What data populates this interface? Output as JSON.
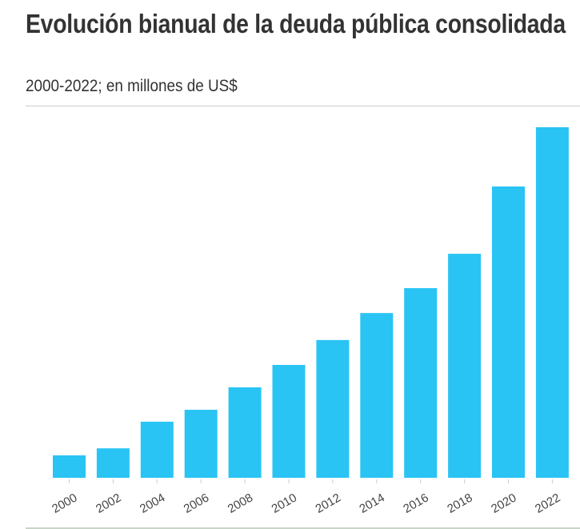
{
  "title": "Evolución bianual de la deuda pública consolidada",
  "subtitle": "2000-2022; en millones de US$",
  "chart_data": {
    "type": "bar",
    "title": "Evolución bianual de la deuda pública consolidada",
    "subtitle": "2000-2022; en millones de US$",
    "categories": [
      "2000",
      "2002",
      "2004",
      "2006",
      "2008",
      "2010",
      "2012",
      "2014",
      "2016",
      "2018",
      "2020",
      "2022"
    ],
    "values": [
      6.4,
      8.4,
      16.0,
      19.4,
      25.8,
      32.2,
      39.3,
      47.0,
      54.1,
      63.9,
      83.1,
      100
    ],
    "value_note_scale": "relative (no y-axis printed), max = 100",
    "ylim": [
      0,
      100
    ],
    "grid": false,
    "bar_color": "#29c4f4"
  }
}
